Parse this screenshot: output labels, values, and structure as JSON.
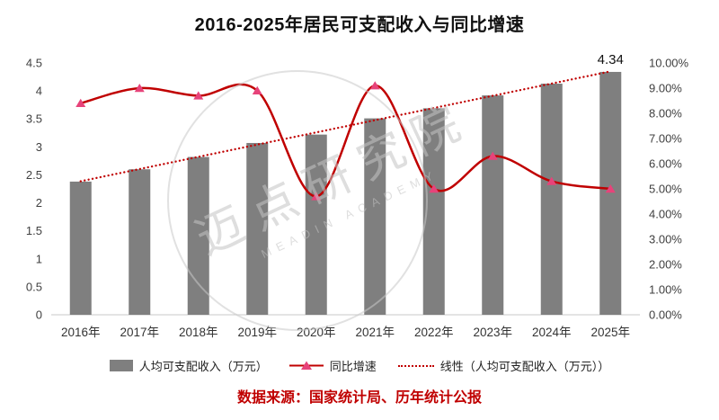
{
  "chart_data": {
    "type": "bar",
    "subtype": "combo-bar-smooth-line-with-trend",
    "title": "2016-2025年居民可支配收入与同比增速",
    "categories": [
      "2016年",
      "2017年",
      "2018年",
      "2019年",
      "2020年",
      "2021年",
      "2022年",
      "2023年",
      "2024年",
      "2025年"
    ],
    "series": [
      {
        "name": "人均可支配收入（万元）",
        "type": "bar",
        "axis": "left",
        "color": "#7f7f7f",
        "values": [
          2.38,
          2.6,
          2.82,
          3.07,
          3.22,
          3.51,
          3.69,
          3.92,
          4.13,
          4.34
        ]
      },
      {
        "name": "同比增速",
        "type": "line",
        "axis": "right",
        "color": "#c00000",
        "marker": "triangle",
        "marker_color": "#e7437a",
        "values": [
          8.4,
          9.0,
          8.7,
          8.9,
          4.7,
          9.1,
          5.0,
          6.3,
          5.3,
          5.0
        ]
      },
      {
        "name": "线性（人均可支配收入（万元））",
        "type": "trend",
        "axis": "left",
        "color": "#c00000",
        "style": "dotted",
        "of_series": 0
      }
    ],
    "left_axis": {
      "min": 0,
      "max": 4.5,
      "step": 0.5,
      "labels": [
        "4.5",
        "4",
        "3.5",
        "3",
        "2.5",
        "2",
        "1.5",
        "1",
        "0.5",
        "0"
      ]
    },
    "right_axis": {
      "min": 0,
      "max": 10,
      "step": 1,
      "labels": [
        "10.00%",
        "9.00%",
        "8.00%",
        "7.00%",
        "6.00%",
        "5.00%",
        "4.00%",
        "3.00%",
        "2.00%",
        "1.00%",
        "0.00%"
      ]
    },
    "annotations": [
      {
        "series": 0,
        "index": 9,
        "text": "4.34"
      }
    ],
    "grid": false,
    "legend_position": "bottom"
  },
  "watermark": {
    "text": "迈点研究院",
    "subtext": "MEADIN ACADEMY"
  },
  "source": "数据来源：国家统计局、历年统计公报"
}
